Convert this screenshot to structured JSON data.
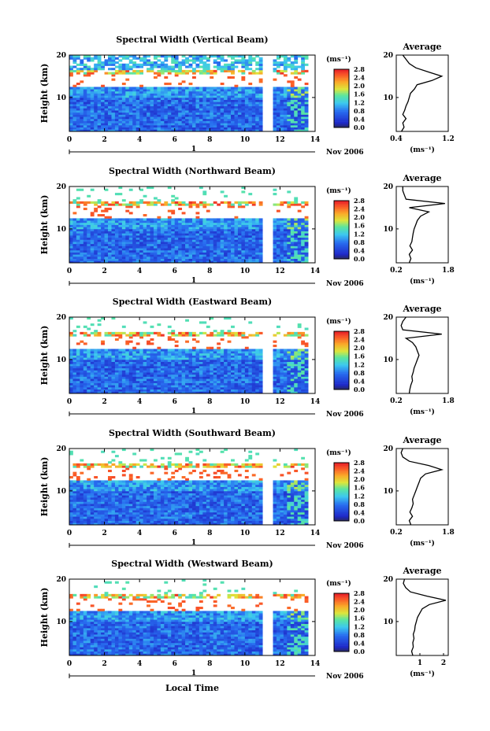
{
  "figure": {
    "xlabel": "Local Time",
    "date_label": "Nov 2006",
    "day_label": "1",
    "ylabel": "Height (km)",
    "unit": "(ms⁻¹)",
    "average_title": "Average"
  },
  "chart_data": [
    {
      "type": "heatmap",
      "title": "Spectral Width (Vertical Beam)",
      "xlim": [
        0,
        14
      ],
      "xticks": [
        "0",
        "2",
        "4",
        "6",
        "8",
        "10",
        "12",
        "14"
      ],
      "ylim": [
        2,
        20
      ],
      "yticks": [
        "10",
        "20"
      ],
      "colorbar_ticks": [
        "0.0",
        "0.4",
        "0.8",
        "1.2",
        "1.6",
        "2.0",
        "2.4",
        "2.8"
      ],
      "colorbar_range": [
        0,
        2.8
      ],
      "data_gap_hours": [
        11.2,
        11.4
      ],
      "profile": {
        "xlim": [
          0.4,
          1.2
        ],
        "xticks": [
          "0.4",
          "1.2"
        ],
        "height": [
          2,
          3,
          4,
          5,
          6,
          7,
          8,
          9,
          10,
          11,
          12,
          13,
          14,
          15,
          16,
          17,
          18,
          19,
          20
        ],
        "value": [
          0.48,
          0.52,
          0.5,
          0.55,
          0.5,
          0.53,
          0.55,
          0.58,
          0.6,
          0.62,
          0.68,
          0.72,
          0.95,
          1.1,
          0.9,
          0.7,
          0.6,
          0.55,
          0.5
        ]
      }
    },
    {
      "type": "heatmap",
      "title": "Spectral Width (Northward Beam)",
      "xlim": [
        0,
        14
      ],
      "xticks": [
        "0",
        "2",
        "4",
        "6",
        "8",
        "10",
        "12",
        "14"
      ],
      "ylim": [
        2,
        20
      ],
      "yticks": [
        "10",
        "20"
      ],
      "colorbar_ticks": [
        "0.0",
        "0.4",
        "0.8",
        "1.2",
        "1.6",
        "2.0",
        "2.4",
        "2.8"
      ],
      "colorbar_range": [
        0,
        2.8
      ],
      "data_gap_hours": [
        11.2,
        11.4
      ],
      "profile": {
        "xlim": [
          0.2,
          1.8
        ],
        "xticks": [
          "0.2",
          "1.8"
        ],
        "height": [
          2,
          3,
          4,
          5,
          6,
          7,
          8,
          9,
          10,
          11,
          12,
          13,
          14,
          15,
          16,
          17,
          18,
          19,
          20
        ],
        "value": [
          0.6,
          0.65,
          0.6,
          0.7,
          0.62,
          0.68,
          0.7,
          0.72,
          0.75,
          0.8,
          0.85,
          0.95,
          1.2,
          0.6,
          1.7,
          0.5,
          0.45,
          0.4,
          0.4
        ]
      }
    },
    {
      "type": "heatmap",
      "title": "Spectral Width (Eastward Beam)",
      "xlim": [
        0,
        14
      ],
      "xticks": [
        "0",
        "2",
        "4",
        "6",
        "8",
        "10",
        "12",
        "14"
      ],
      "ylim": [
        2,
        20
      ],
      "yticks": [
        "10",
        "20"
      ],
      "colorbar_ticks": [
        "0.0",
        "0.4",
        "0.8",
        "1.2",
        "1.6",
        "2.0",
        "2.4",
        "2.8"
      ],
      "colorbar_range": [
        0,
        2.8
      ],
      "data_gap_hours": [
        11.2,
        11.4
      ],
      "profile": {
        "xlim": [
          0.2,
          1.8
        ],
        "xticks": [
          "0.2",
          "1.8"
        ],
        "height": [
          2,
          3,
          4,
          5,
          6,
          7,
          8,
          9,
          10,
          11,
          12,
          13,
          14,
          15,
          16,
          17,
          18,
          19,
          20
        ],
        "value": [
          0.6,
          0.62,
          0.65,
          0.7,
          0.68,
          0.72,
          0.75,
          0.8,
          0.85,
          0.9,
          0.85,
          0.8,
          0.7,
          0.5,
          1.6,
          0.4,
          0.35,
          0.4,
          0.5
        ]
      }
    },
    {
      "type": "heatmap",
      "title": "Spectral Width (Southward Beam)",
      "xlim": [
        0,
        14
      ],
      "xticks": [
        "0",
        "2",
        "4",
        "6",
        "8",
        "10",
        "12",
        "14"
      ],
      "ylim": [
        2,
        20
      ],
      "yticks": [
        "10",
        "20"
      ],
      "colorbar_ticks": [
        "0.0",
        "0.4",
        "0.8",
        "1.2",
        "1.6",
        "2.0",
        "2.4",
        "2.8"
      ],
      "colorbar_range": [
        0,
        2.8
      ],
      "data_gap_hours": [
        11.2,
        11.4
      ],
      "profile": {
        "xlim": [
          0.2,
          1.8
        ],
        "xticks": [
          "0.2",
          "1.8"
        ],
        "height": [
          2,
          3,
          4,
          5,
          6,
          7,
          8,
          9,
          10,
          11,
          12,
          13,
          14,
          15,
          16,
          17,
          18,
          19,
          20
        ],
        "value": [
          0.65,
          0.6,
          0.7,
          0.62,
          0.68,
          0.72,
          0.7,
          0.75,
          0.8,
          0.85,
          0.9,
          0.95,
          1.1,
          1.6,
          1.2,
          0.6,
          0.4,
          0.35,
          0.4
        ]
      }
    },
    {
      "type": "heatmap",
      "title": "Spectral Width (Westward Beam)",
      "xlim": [
        0,
        14
      ],
      "xticks": [
        "0",
        "2",
        "4",
        "6",
        "8",
        "10",
        "12",
        "14"
      ],
      "ylim": [
        2,
        20
      ],
      "yticks": [
        "10",
        "20"
      ],
      "colorbar_ticks": [
        "0.0",
        "0.4",
        "0.8",
        "1.2",
        "1.6",
        "2.0",
        "2.4",
        "2.8"
      ],
      "colorbar_range": [
        0,
        2.8
      ],
      "data_gap_hours": [
        11.2,
        11.4
      ],
      "profile": {
        "xlim": [
          0,
          2.2
        ],
        "xticks": [
          "1",
          "2"
        ],
        "xtick_values": [
          1,
          2
        ],
        "height": [
          2,
          3,
          4,
          5,
          6,
          7,
          8,
          9,
          10,
          11,
          12,
          13,
          14,
          15,
          16,
          17,
          18,
          19,
          20
        ],
        "value": [
          0.7,
          0.65,
          0.72,
          0.7,
          0.75,
          0.72,
          0.78,
          0.8,
          0.85,
          0.9,
          1.0,
          1.1,
          1.4,
          2.1,
          1.3,
          0.6,
          0.4,
          0.3,
          0.35
        ]
      }
    }
  ]
}
